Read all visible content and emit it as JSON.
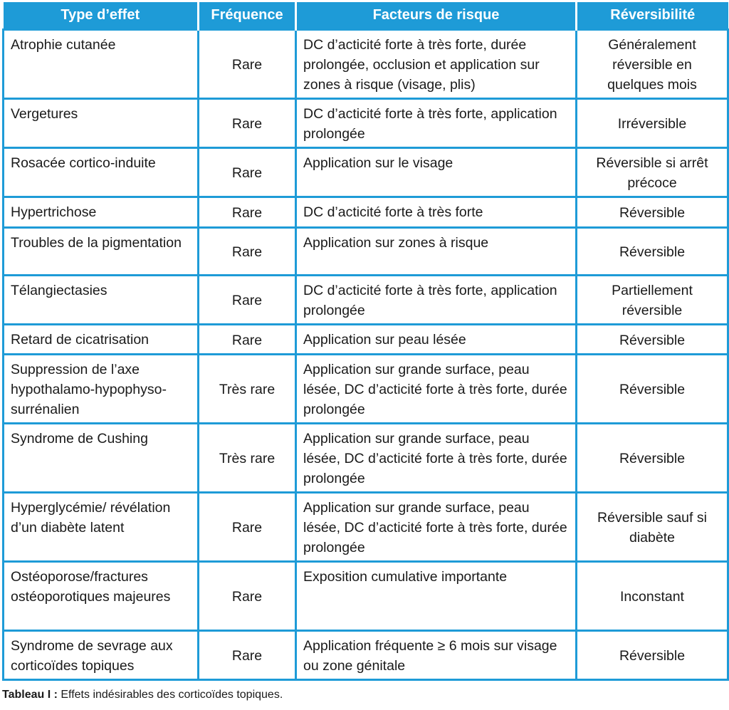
{
  "table": {
    "headers": [
      "Type d’effet",
      "Fréquence",
      "Facteurs de risque",
      "Réversibilité"
    ],
    "rows": [
      [
        "Atrophie cutanée",
        "Rare",
        "DC d’acticité forte à très forte, durée prolongée, occlusion et application sur zones à risque (visage, plis)",
        "Généralement réversible en quelques mois"
      ],
      [
        "Vergetures",
        "Rare",
        "DC d’acticité forte à très forte, application prolongée",
        "Irréversible"
      ],
      [
        "Rosacée cortico-induite",
        "Rare",
        "Application sur le visage",
        "Réversible si arrêt précoce"
      ],
      [
        "Hypertrichose",
        "Rare",
        "DC d’acticité forte à très forte",
        "Réversible"
      ],
      [
        "Troubles de la pigmentation",
        "Rare",
        "Application sur zones à risque",
        "Réversible"
      ],
      [
        "Télangiectasies",
        "Rare",
        "DC d’acticité forte à très forte, application prolongée",
        "Partiellement réversible"
      ],
      [
        "Retard de cicatrisation",
        "Rare",
        "Application sur peau lésée",
        "Réversible"
      ],
      [
        "Suppression de l’axe hypothalamo-hypophyso-surrénalien",
        "Très rare",
        "Application sur grande surface, peau lésée, DC d’acticité forte à très forte, durée prolongée",
        "Réversible"
      ],
      [
        "Syndrome de Cushing",
        "Très rare",
        "Application sur grande surface, peau lésée, DC d’acticité forte à très forte, durée prolongée",
        "Réversible"
      ],
      [
        "Hyperglycémie/ révélation d’un diabète latent",
        "Rare",
        "Application sur grande surface, peau lésée, DC d’acticité forte à très forte, durée prolongée",
        "Réversible sauf si diabète"
      ],
      [
        "Ostéoporose/fractures ostéoporotiques majeures",
        "Rare",
        "Exposition cumulative importante",
        "Inconstant"
      ],
      [
        "Syndrome de sevrage aux corticoïdes topiques",
        "Rare",
        "Application fréquente ≥ 6 mois sur visage ou zone génitale",
        "Réversible"
      ]
    ]
  },
  "caption": {
    "label": "Tableau I :",
    "text": " Effets indésirables des corticoïdes topiques."
  },
  "colors": {
    "accent": "#1e9bd7"
  }
}
